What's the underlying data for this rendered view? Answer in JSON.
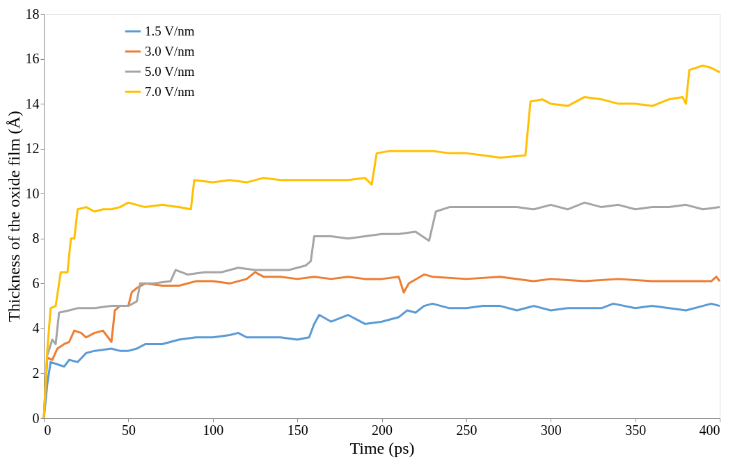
{
  "chart_data": {
    "type": "line",
    "xlabel": "Time (ps)",
    "ylabel": "Thickness of the oxide film (Å)",
    "xlim": [
      0,
      400
    ],
    "ylim": [
      0,
      18
    ],
    "xticks": [
      0,
      50,
      100,
      150,
      200,
      250,
      300,
      350,
      400
    ],
    "yticks": [
      0,
      2,
      4,
      6,
      8,
      10,
      12,
      14,
      16,
      18
    ],
    "grid": false,
    "legend": "top left",
    "marker": "none",
    "line_style": "solid",
    "series": [
      {
        "name": "1.5 V/nm",
        "color": "#5b9bd5",
        "x": [
          0,
          2,
          4,
          8,
          12,
          15,
          20,
          25,
          30,
          40,
          45,
          50,
          55,
          60,
          70,
          80,
          90,
          100,
          110,
          115,
          120,
          130,
          140,
          150,
          157,
          160,
          163,
          170,
          180,
          190,
          200,
          210,
          215,
          220,
          225,
          230,
          240,
          250,
          260,
          270,
          280,
          290,
          300,
          310,
          320,
          330,
          337,
          350,
          360,
          370,
          380,
          390,
          395,
          400
        ],
        "values": [
          0,
          1.5,
          2.5,
          2.4,
          2.3,
          2.6,
          2.5,
          2.9,
          3.0,
          3.1,
          3.0,
          3.0,
          3.1,
          3.3,
          3.3,
          3.5,
          3.6,
          3.6,
          3.7,
          3.8,
          3.6,
          3.6,
          3.6,
          3.5,
          3.6,
          4.2,
          4.6,
          4.3,
          4.6,
          4.2,
          4.3,
          4.5,
          4.8,
          4.7,
          5.0,
          5.1,
          4.9,
          4.9,
          5.0,
          5.0,
          4.8,
          5.0,
          4.8,
          4.9,
          4.9,
          4.9,
          5.1,
          4.9,
          5.0,
          4.9,
          4.8,
          5.0,
          5.1,
          5.0
        ]
      },
      {
        "name": "3.0 V/nm",
        "color": "#ed7d31",
        "x": [
          0,
          2,
          5,
          8,
          12,
          15,
          18,
          22,
          25,
          30,
          35,
          40,
          42,
          45,
          50,
          52,
          55,
          60,
          70,
          80,
          90,
          100,
          110,
          120,
          125,
          130,
          140,
          150,
          160,
          170,
          180,
          190,
          200,
          210,
          213,
          216,
          225,
          230,
          250,
          270,
          290,
          300,
          320,
          340,
          360,
          380,
          395,
          398,
          400
        ],
        "values": [
          0,
          2.7,
          2.6,
          3.1,
          3.3,
          3.4,
          3.9,
          3.8,
          3.6,
          3.8,
          3.9,
          3.4,
          4.8,
          5.0,
          5.0,
          5.6,
          5.8,
          6.0,
          5.9,
          5.9,
          6.1,
          6.1,
          6.0,
          6.2,
          6.5,
          6.3,
          6.3,
          6.2,
          6.3,
          6.2,
          6.3,
          6.2,
          6.2,
          6.3,
          5.6,
          6.0,
          6.4,
          6.3,
          6.2,
          6.3,
          6.1,
          6.2,
          6.1,
          6.2,
          6.1,
          6.1,
          6.1,
          6.3,
          6.1
        ]
      },
      {
        "name": "5.0 V/nm",
        "color": "#a5a5a5",
        "x": [
          0,
          2,
          5,
          7,
          9,
          15,
          20,
          30,
          40,
          50,
          55,
          57,
          65,
          75,
          78,
          85,
          95,
          105,
          115,
          125,
          135,
          145,
          155,
          158,
          160,
          170,
          180,
          190,
          200,
          210,
          220,
          228,
          232,
          240,
          250,
          260,
          270,
          280,
          290,
          300,
          310,
          320,
          330,
          340,
          350,
          360,
          370,
          380,
          390,
          400
        ],
        "values": [
          0,
          2.8,
          3.5,
          3.3,
          4.7,
          4.8,
          4.9,
          4.9,
          5.0,
          5.0,
          5.2,
          6.0,
          6.0,
          6.1,
          6.6,
          6.4,
          6.5,
          6.5,
          6.7,
          6.6,
          6.6,
          6.6,
          6.8,
          7.0,
          8.1,
          8.1,
          8.0,
          8.1,
          8.2,
          8.2,
          8.3,
          7.9,
          9.2,
          9.4,
          9.4,
          9.4,
          9.4,
          9.4,
          9.3,
          9.5,
          9.3,
          9.6,
          9.4,
          9.5,
          9.3,
          9.4,
          9.4,
          9.5,
          9.3,
          9.4
        ]
      },
      {
        "name": "7.0 V/nm",
        "color": "#ffc000",
        "x": [
          0,
          2,
          4,
          7,
          10,
          14,
          16,
          18,
          20,
          25,
          30,
          35,
          40,
          45,
          50,
          60,
          70,
          80,
          87,
          89,
          100,
          110,
          120,
          130,
          140,
          150,
          160,
          170,
          180,
          190,
          194,
          197,
          205,
          220,
          230,
          240,
          250,
          260,
          270,
          285,
          288,
          295,
          300,
          310,
          320,
          330,
          340,
          350,
          360,
          370,
          378,
          380,
          382,
          390,
          395,
          400
        ],
        "values": [
          0,
          3.0,
          4.9,
          5.0,
          6.5,
          6.5,
          8.0,
          8.0,
          9.3,
          9.4,
          9.2,
          9.3,
          9.3,
          9.4,
          9.6,
          9.4,
          9.5,
          9.4,
          9.3,
          10.6,
          10.5,
          10.6,
          10.5,
          10.7,
          10.6,
          10.6,
          10.6,
          10.6,
          10.6,
          10.7,
          10.4,
          11.8,
          11.9,
          11.9,
          11.9,
          11.8,
          11.8,
          11.7,
          11.6,
          11.7,
          14.1,
          14.2,
          14.0,
          13.9,
          14.3,
          14.2,
          14.0,
          14.0,
          13.9,
          14.2,
          14.3,
          14.0,
          15.5,
          15.7,
          15.6,
          15.4
        ]
      }
    ]
  }
}
